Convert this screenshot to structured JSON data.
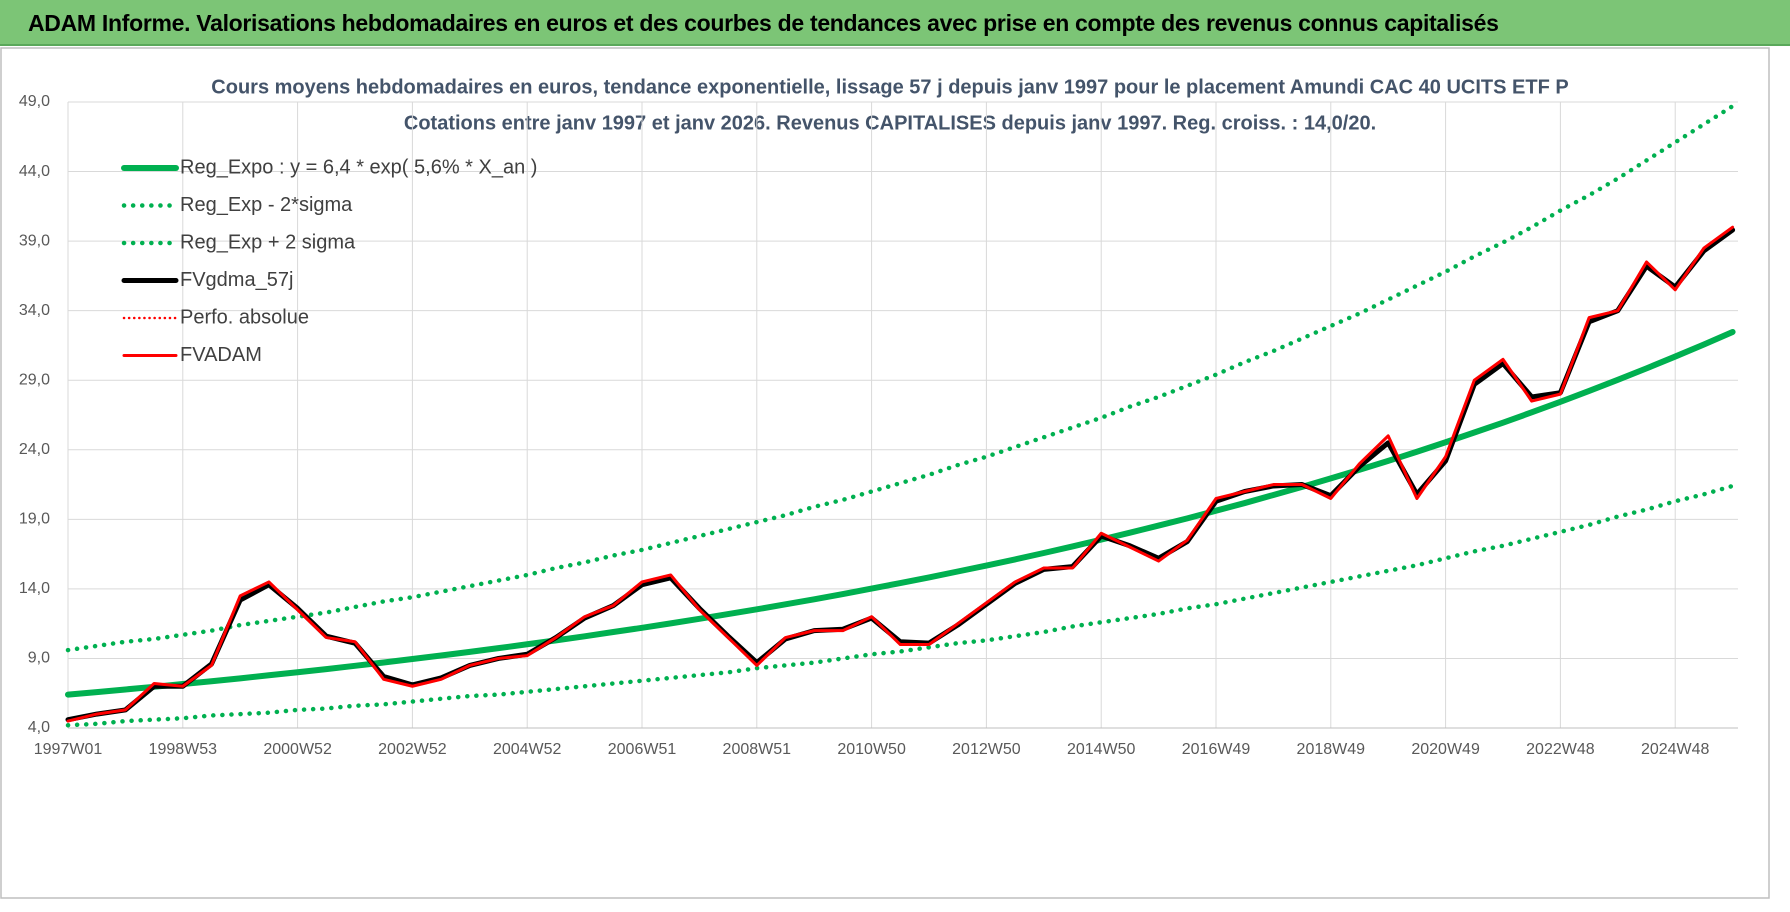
{
  "header": {
    "title": "ADAM Informe. Valorisations hebdomadaires en euros et des courbes de tendances avec prise en compte des revenus connus capitalisés"
  },
  "chart_data": {
    "type": "line",
    "title": "Cours moyens hebdomadaires en euros, tendance exponentielle, lissage 57 j depuis janv 1997  pour le  placement Amundi CAC 40 UCITS ETF P",
    "subtitle": "Cotations entre janv 1997 et janv 2026. Revenus CAPITALISES depuis janv 1997. Reg. croiss. : 14,0/20.",
    "categories": [
      "1997W01",
      null,
      null,
      null,
      "1998W53",
      null,
      null,
      null,
      "2000W52",
      null,
      null,
      null,
      "2002W52",
      null,
      null,
      null,
      "2004W52",
      null,
      null,
      null,
      "2006W51",
      null,
      null,
      null,
      "2008W51",
      null,
      null,
      null,
      "2010W50",
      null,
      null,
      null,
      "2012W50",
      null,
      null,
      null,
      "2014W50",
      null,
      null,
      null,
      "2016W49",
      null,
      null,
      null,
      "2018W49",
      null,
      null,
      null,
      "2020W49",
      null,
      null,
      null,
      "2022W48",
      null,
      null,
      null,
      "2024W48",
      null,
      null
    ],
    "ylim": [
      4,
      49
    ],
    "yticks": [
      {
        "value": 4,
        "label": "4,0"
      },
      {
        "value": 9,
        "label": "9,0"
      },
      {
        "value": 14,
        "label": "14,0"
      },
      {
        "value": 19,
        "label": "19,0"
      },
      {
        "value": 24,
        "label": "24,0"
      },
      {
        "value": 29,
        "label": "29,0"
      },
      {
        "value": 34,
        "label": "34,0"
      },
      {
        "value": 39,
        "label": "39,0"
      },
      {
        "value": 44,
        "label": "44,0"
      },
      {
        "value": 49,
        "label": "49,0"
      }
    ],
    "grid": true,
    "legend": "top-left",
    "series": [
      {
        "name": "Reg_Expo : y = 6,4 * exp( 5,6% *  X_an )",
        "color": "#00b050",
        "line_style": "solid",
        "values": [
          6.4,
          6.58,
          6.77,
          6.96,
          7.16,
          7.36,
          7.57,
          7.79,
          8.01,
          8.23,
          8.47,
          8.71,
          8.96,
          9.21,
          9.47,
          9.74,
          10.02,
          10.3,
          10.59,
          10.9,
          11.2,
          11.52,
          11.85,
          12.19,
          12.53,
          12.89,
          13.25,
          13.63,
          14.02,
          14.42,
          14.82,
          15.25,
          15.68,
          16.12,
          16.58,
          17.05,
          17.54,
          18.04,
          18.55,
          19.07,
          19.62,
          20.17,
          20.75,
          21.33,
          21.94,
          22.56,
          23.2,
          23.86,
          24.54,
          25.24,
          25.95,
          26.69,
          27.45,
          28.23,
          29.03,
          29.85,
          30.7,
          31.57,
          32.47
        ]
      },
      {
        "name": "Reg_Exp - 2*sigma",
        "color": "#00b050",
        "line_style": "dotted",
        "values": [
          4.2,
          4.3,
          4.5,
          4.6,
          4.7,
          4.9,
          5.0,
          5.1,
          5.3,
          5.4,
          5.6,
          5.7,
          5.9,
          6.1,
          6.3,
          6.4,
          6.6,
          6.8,
          7.0,
          7.2,
          7.4,
          7.6,
          7.8,
          8.0,
          8.3,
          8.5,
          8.7,
          9.0,
          9.3,
          9.5,
          9.8,
          10.1,
          10.3,
          10.6,
          10.9,
          11.3,
          11.6,
          11.9,
          12.2,
          12.6,
          12.9,
          13.3,
          13.7,
          14.1,
          14.5,
          14.9,
          15.3,
          15.7,
          16.2,
          16.7,
          17.1,
          17.6,
          18.1,
          18.6,
          19.2,
          19.7,
          20.3,
          20.8,
          21.4
        ]
      },
      {
        "name": "Reg_Exp + 2 sigma",
        "color": "#00b050",
        "line_style": "dotted",
        "values": [
          9.6,
          9.9,
          10.2,
          10.4,
          10.7,
          11.0,
          11.4,
          11.7,
          12.0,
          12.3,
          12.7,
          13.1,
          13.4,
          13.8,
          14.2,
          14.6,
          15.0,
          15.5,
          15.9,
          16.4,
          16.8,
          17.3,
          17.8,
          18.3,
          18.8,
          19.3,
          19.9,
          20.4,
          21.0,
          21.6,
          22.2,
          22.9,
          23.5,
          24.2,
          24.9,
          25.6,
          26.3,
          27.1,
          27.8,
          28.6,
          29.4,
          30.3,
          31.1,
          32.0,
          32.9,
          33.8,
          34.8,
          35.8,
          36.8,
          37.9,
          38.9,
          40.0,
          41.2,
          42.3,
          43.5,
          44.8,
          46.1,
          47.4,
          48.7
        ]
      },
      {
        "name": "FVgdma_57j",
        "color": "#000000",
        "line_style": "solid",
        "values": [
          4.6,
          5.0,
          5.3,
          7.0,
          7.0,
          8.6,
          13.2,
          14.3,
          12.6,
          10.6,
          10.1,
          7.7,
          7.1,
          7.6,
          8.5,
          9.0,
          9.3,
          10.5,
          11.9,
          12.8,
          14.3,
          14.8,
          12.6,
          10.6,
          8.7,
          10.4,
          11.0,
          11.1,
          11.9,
          10.2,
          10.1,
          11.4,
          12.9,
          14.4,
          15.4,
          15.6,
          17.8,
          17.1,
          16.2,
          17.4,
          20.3,
          21.0,
          21.4,
          21.5,
          20.7,
          22.8,
          24.5,
          20.8,
          23.2,
          28.7,
          30.2,
          27.8,
          28.1,
          33.2,
          34.0,
          37.2,
          35.7,
          38.3,
          39.8
        ]
      },
      {
        "name": "Perfo. absolue",
        "color": "#ff0000",
        "line_style": "dotted",
        "values": [
          4.5,
          5.0,
          5.3,
          7.2,
          7.0,
          8.5,
          13.5,
          14.5,
          12.5,
          10.5,
          10.2,
          7.5,
          7.0,
          7.5,
          8.5,
          9.0,
          9.2,
          10.5,
          12.0,
          12.8,
          14.5,
          15.0,
          12.5,
          10.5,
          8.5,
          10.5,
          11.0,
          11.0,
          12.0,
          10.0,
          10.0,
          11.5,
          13.0,
          14.5,
          15.5,
          15.5,
          18.0,
          17.0,
          16.0,
          17.5,
          20.5,
          21.0,
          21.5,
          21.5,
          20.5,
          23.0,
          25.0,
          20.5,
          23.5,
          29.0,
          30.5,
          27.5,
          28.0,
          33.5,
          34.0,
          37.5,
          35.5,
          38.5,
          40.0
        ]
      },
      {
        "name": "FVADAM",
        "color": "#ff0000",
        "line_style": "solid",
        "values": [
          4.5,
          5.0,
          5.3,
          7.2,
          7.0,
          8.5,
          13.5,
          14.5,
          12.5,
          10.5,
          10.2,
          7.5,
          7.0,
          7.5,
          8.5,
          9.0,
          9.2,
          10.5,
          12.0,
          12.8,
          14.5,
          15.0,
          12.5,
          10.5,
          8.5,
          10.5,
          11.0,
          11.0,
          12.0,
          10.0,
          10.0,
          11.5,
          13.0,
          14.5,
          15.5,
          15.5,
          18.0,
          17.0,
          16.0,
          17.5,
          20.5,
          21.0,
          21.5,
          21.5,
          20.5,
          23.0,
          25.0,
          20.5,
          23.5,
          29.0,
          30.5,
          27.5,
          28.0,
          33.5,
          34.0,
          37.5,
          35.5,
          38.5,
          40.0
        ]
      }
    ]
  }
}
